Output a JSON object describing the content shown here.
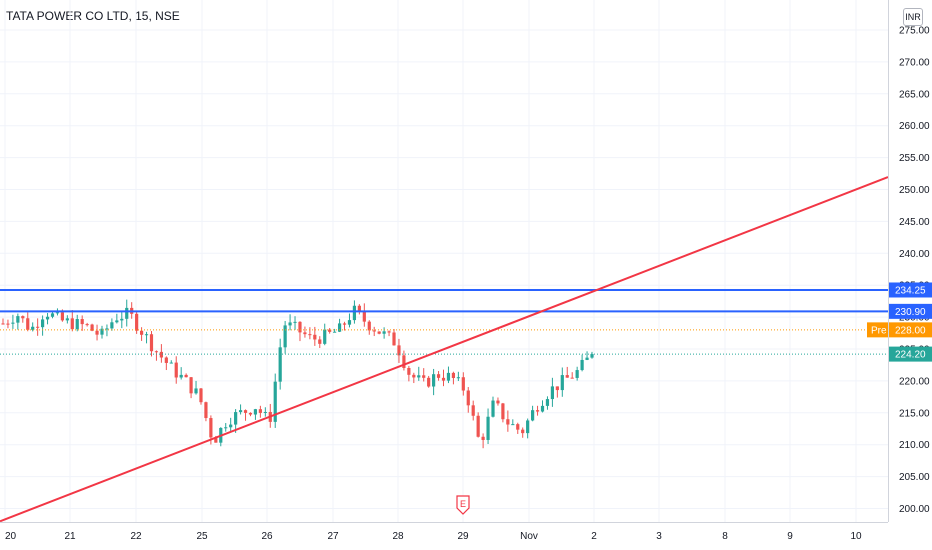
{
  "header": {
    "title": "TATA POWER CO LTD, 15, NSE",
    "currency": "INR"
  },
  "chart_data": {
    "type": "candlestick",
    "symbol": "TATA POWER CO LTD",
    "interval": "15",
    "exchange": "NSE",
    "ylim": [
      197,
      278
    ],
    "y_ticks": [
      200,
      205,
      210,
      215,
      220,
      225,
      230,
      235,
      240,
      245,
      250,
      255,
      260,
      265,
      270,
      275
    ],
    "x_ticks": [
      "20",
      "21",
      "22",
      "25",
      "26",
      "27",
      "28",
      "29",
      "Nov",
      "2",
      "3",
      "8",
      "9",
      "10"
    ],
    "closes": [
      229.0,
      230.5,
      228.0,
      231.0,
      229.5,
      229.0,
      228.5,
      227.0,
      230.0,
      230.5,
      227.5,
      224.5,
      222.0,
      220.0,
      217.5,
      210.5,
      214.0,
      215.0,
      216.0,
      213.5,
      229.0,
      228.0,
      226.5,
      227.0,
      228.0,
      231.0,
      229.0,
      227.5,
      226.0,
      221.0,
      219.5,
      221.0,
      220.5,
      218.5,
      210.0,
      216.5,
      213.5,
      212.0,
      216.0,
      218.5,
      220.0,
      221.5,
      224.2
    ],
    "horizontal_lines": [
      {
        "value": 234.25,
        "color": "#2962ff"
      },
      {
        "value": 230.9,
        "color": "#2962ff"
      }
    ],
    "trendline": {
      "from": [
        "20",
        198.3
      ],
      "to": [
        "10",
        250.0
      ],
      "color": "#f23645"
    },
    "price_labels": [
      {
        "value": "234.25",
        "color": "#2962ff"
      },
      {
        "value": "230.90",
        "color": "#2962ff"
      },
      {
        "value": "228.00",
        "prefix": "Pre",
        "color": "#ff9800"
      },
      {
        "value": "224.20",
        "color": "#26a69a"
      }
    ],
    "earnings_marker": {
      "label": "E",
      "date": "29"
    },
    "colors": {
      "up": "#26a69a",
      "down": "#ef5350"
    }
  }
}
